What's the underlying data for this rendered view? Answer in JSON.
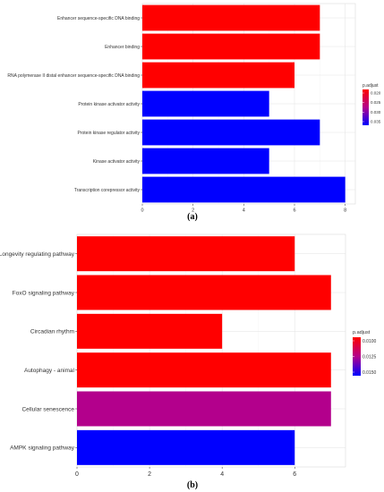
{
  "chart_data": [
    {
      "panel_label": "(a)",
      "type": "bar",
      "orientation": "horizontal",
      "categories": [
        "Enhancer sequence-specific DNA binding",
        "Enhancer binding",
        "RNA polymerase II distal enhancer sequence-specific DNA binding",
        "Protein kinase activator activity",
        "Protein kinase regulator activity",
        "Kinase activator activity",
        "Transcription corepressor activity"
      ],
      "values": [
        7,
        7,
        6,
        5,
        7,
        5,
        8
      ],
      "bar_colors": [
        "#ff0000",
        "#ff0000",
        "#ff0000",
        "#0000ff",
        "#0000ff",
        "#0000ff",
        "#0000ff"
      ],
      "xlim": [
        0,
        8.4
      ],
      "xticks": [
        0,
        2,
        4,
        6,
        8
      ],
      "grid": true,
      "legend": {
        "title": "p.adjust",
        "labels": [
          "0.020",
          "0.025",
          "0.030",
          "0.035"
        ],
        "colors": [
          "#ff0000",
          "#0000ff"
        ],
        "placement": "right"
      }
    },
    {
      "panel_label": "(b)",
      "type": "bar",
      "orientation": "horizontal",
      "categories": [
        "Longevity regulating pathway",
        "FoxO signaling pathway",
        "Circadian rhythm",
        "Autophagy - animal",
        "Cellular senescence",
        "AMPK signaling pathway"
      ],
      "values": [
        6,
        7,
        4,
        7,
        7,
        6
      ],
      "bar_colors": [
        "#ff0000",
        "#ff0000",
        "#ff0000",
        "#ff0000",
        "#b3008c",
        "#0000ff"
      ],
      "xlim": [
        0,
        7.4
      ],
      "xticks": [
        0,
        2,
        4,
        6
      ],
      "grid": true,
      "legend": {
        "title": "p.adjust",
        "labels": [
          "0.0100",
          "0.0125",
          "0.0150"
        ],
        "colors": [
          "#ff0000",
          "#0000ff"
        ],
        "placement": "right"
      }
    }
  ]
}
